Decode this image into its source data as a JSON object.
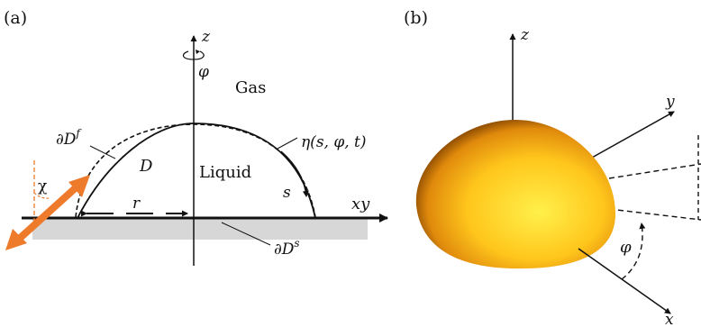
{
  "panel_a": {
    "label": "(a)",
    "axis_z": "z",
    "angle_phi": "φ",
    "region_gas": "Gas",
    "region_liquid": "Liquid",
    "domain": "D",
    "free_surface": "∂D",
    "free_surface_sup": "f",
    "solid_surface": "∂D",
    "solid_surface_sup": "s",
    "height_function": "η(s, φ, t)",
    "arclength": "s",
    "radius": "r",
    "axis_xy": "xy",
    "tilt_angle": "χ"
  },
  "panel_b": {
    "label": "(b)",
    "axis_z": "z",
    "axis_y": "y",
    "axis_x": "x",
    "angle_phi": "φ"
  },
  "colors": {
    "substrate": "#d7d7d7",
    "arrow": "#ee7a2b",
    "drop_light": "#fff04a",
    "drop_mid": "#ffbf1e",
    "drop_dark": "#7a3d00"
  }
}
